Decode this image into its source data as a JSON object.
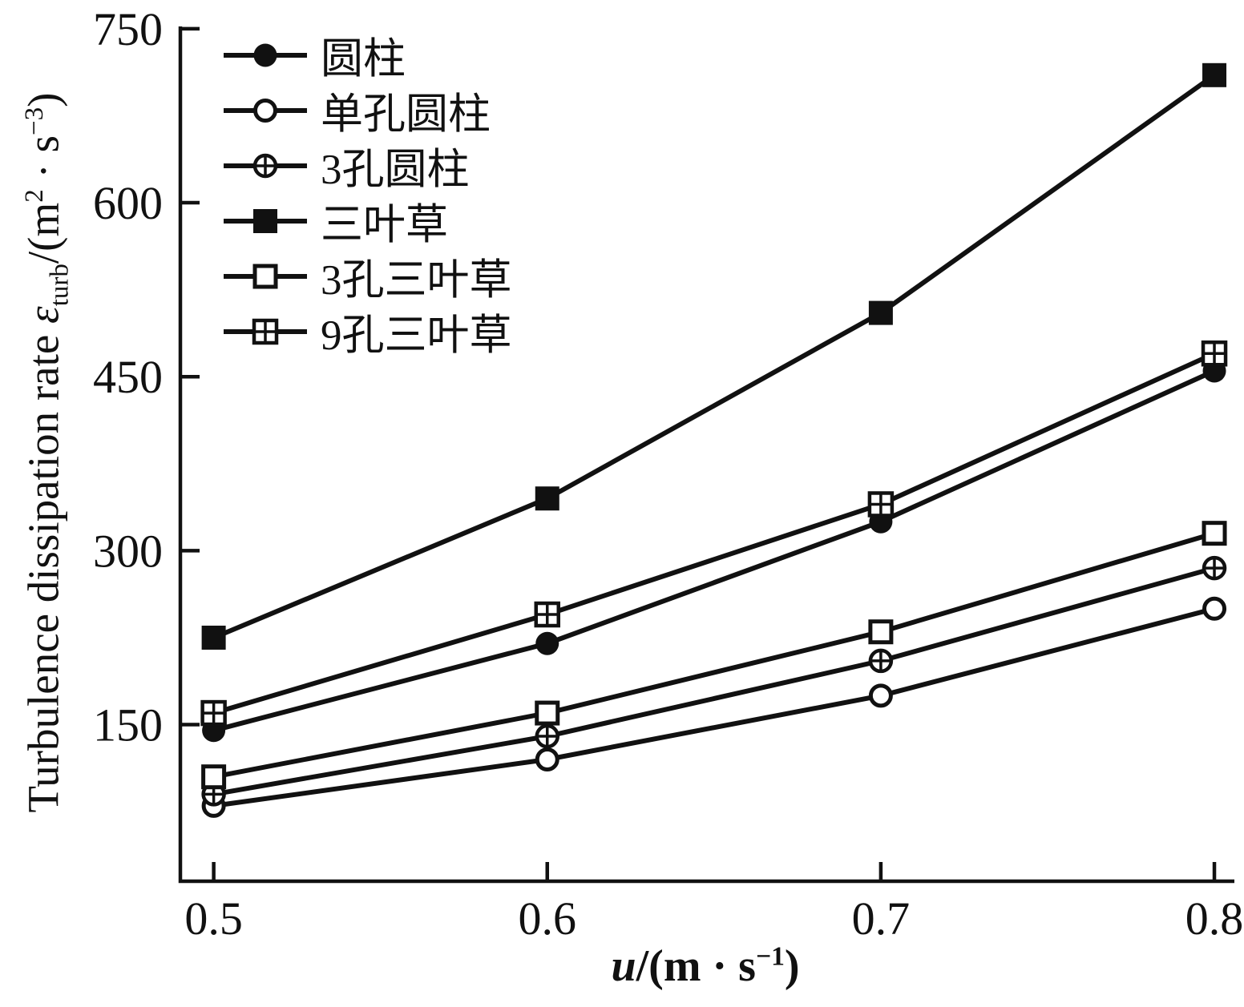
{
  "chart_data": {
    "type": "line",
    "x": [
      0.5,
      0.6,
      0.7,
      0.8
    ],
    "series": [
      {
        "name": "圆柱",
        "marker": "filled-circle",
        "values": [
          145,
          220,
          325,
          455
        ]
      },
      {
        "name": "单孔圆柱",
        "marker": "open-circle",
        "values": [
          80,
          120,
          175,
          250
        ]
      },
      {
        "name": "3孔圆柱",
        "marker": "circle-plus",
        "values": [
          90,
          140,
          205,
          285
        ]
      },
      {
        "name": "三叶草",
        "marker": "filled-square",
        "values": [
          225,
          345,
          505,
          710
        ]
      },
      {
        "name": "3孔三叶草",
        "marker": "open-square",
        "values": [
          105,
          160,
          230,
          315
        ]
      },
      {
        "name": "9孔三叶草",
        "marker": "square-grid",
        "values": [
          160,
          245,
          340,
          470
        ]
      }
    ],
    "xticks": [
      "0.5",
      "0.6",
      "0.7",
      "0.8"
    ],
    "yticks": [
      "150",
      "300",
      "450",
      "600",
      "750"
    ],
    "xlim": [
      0.49,
      0.806
    ],
    "ylim": [
      15,
      752
    ],
    "grid": false,
    "legend_position": "top-left",
    "line_color": "#111111",
    "background_color": "#ffffff",
    "ylabel": {
      "text": "Turbulence dissipation rate ",
      "symbol": "ε",
      "sub": "turb",
      "unit_open": "/(m",
      "sup1": "2",
      "unit_mid": " · s",
      "sup2": "−3",
      "unit_close": ")"
    },
    "xlabel": {
      "symbol": "u",
      "unit_open": "/(m · s",
      "sup": "−1",
      "unit_close": ")"
    }
  }
}
